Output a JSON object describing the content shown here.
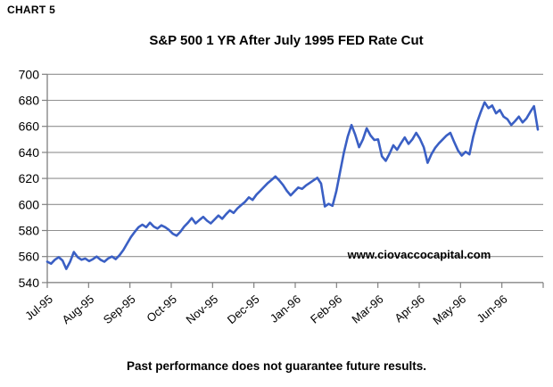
{
  "header": {
    "label": "CHART 5"
  },
  "footer": {
    "caption": "Past performance does not guarantee future results."
  },
  "chart_data": {
    "type": "line",
    "title": "S&P 500 1 YR After July 1995 FED Rate Cut",
    "xlabel": "",
    "ylabel": "",
    "x_tick_labels": [
      "Jul-95",
      "Aug-95",
      "Sep-95",
      "Oct-95",
      "Nov-95",
      "Dec-95",
      "Jan-96",
      "Feb-96",
      "Mar-96",
      "Apr-96",
      "May-96",
      "Jun-96"
    ],
    "y_ticks": [
      540,
      560,
      580,
      600,
      620,
      640,
      660,
      680,
      700
    ],
    "ylim": [
      540,
      700
    ],
    "grid": "horizontal",
    "legend": "none",
    "watermark": "www.ciovaccocapital.com",
    "colors": {
      "line": "#3a5fc4",
      "grid": "#909090",
      "axis": "#808080",
      "text": "#000000"
    },
    "series": [
      {
        "name": "S&P 500",
        "values": [
          556,
          554.5,
          557.5,
          559.5,
          557,
          550.5,
          556,
          563.5,
          559.5,
          557.5,
          558.5,
          556.5,
          558,
          560,
          557.5,
          556,
          558.5,
          560,
          558,
          561,
          565,
          570,
          575,
          579,
          582.5,
          584.5,
          582.5,
          586,
          583,
          581.5,
          584,
          582.5,
          580.5,
          577.5,
          576,
          579,
          583,
          586,
          589.5,
          585.5,
          588,
          590.5,
          587.5,
          585.5,
          588.5,
          591.5,
          589,
          592.5,
          595.5,
          593.5,
          597,
          599.5,
          602,
          605.5,
          603.5,
          607.5,
          610.5,
          613.5,
          616.5,
          619,
          621.5,
          618.5,
          615,
          610.5,
          607,
          610,
          613,
          612,
          614.5,
          616.5,
          618.5,
          620.5,
          616,
          598.5,
          600.5,
          599,
          610,
          625,
          640,
          652,
          661,
          653.5,
          644,
          650,
          658.5,
          653,
          649.5,
          650,
          637,
          633.5,
          639,
          645.5,
          642,
          647,
          651.5,
          646.5,
          650,
          655,
          650.5,
          644,
          632,
          638.5,
          643.5,
          647,
          650,
          653,
          655,
          648,
          641.5,
          637.5,
          640.5,
          638.5,
          652,
          663,
          671,
          678.5,
          674,
          676,
          670,
          672.5,
          667.5,
          665.5,
          661,
          664,
          667.5,
          663,
          666,
          671,
          675.5,
          657.5
        ]
      }
    ]
  }
}
